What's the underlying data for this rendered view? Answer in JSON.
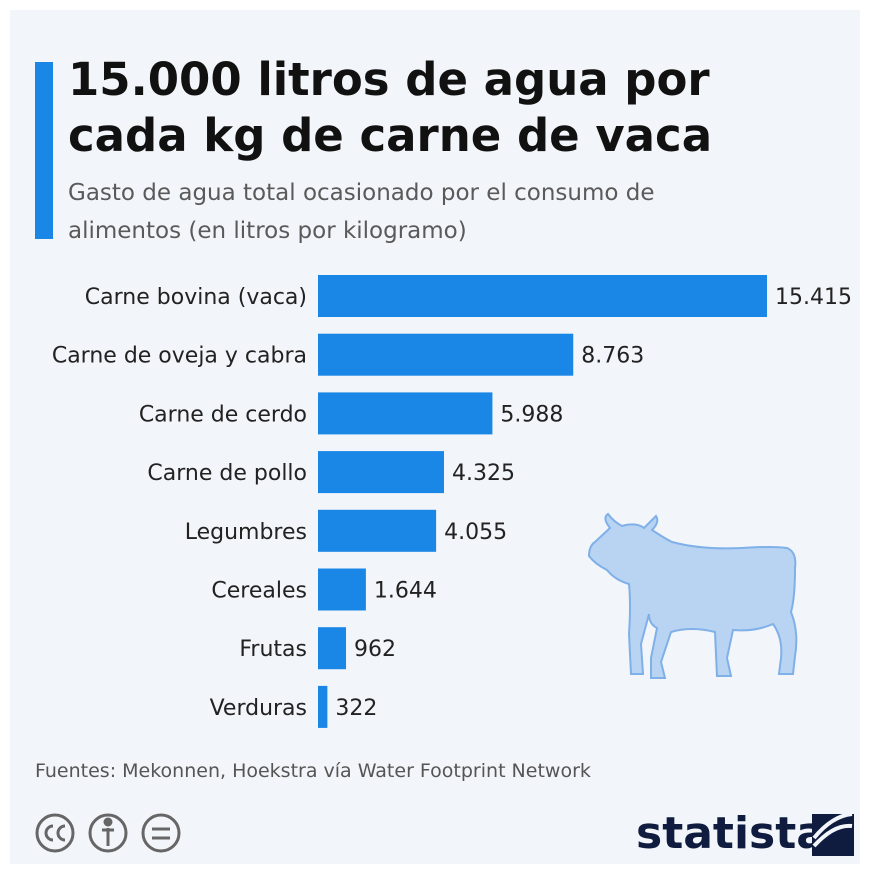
{
  "chart_data": {
    "type": "hbar",
    "title": "15.000 litros de agua por cada kg de carne de vaca",
    "subtitle": "Gasto de agua total ocasionado por el consumo de alimentos (en litros por kilogramo)",
    "categories": [
      "Carne bovina (vaca)",
      "Carne de oveja y cabra",
      "Carne de cerdo",
      "Carne de pollo",
      "Legumbres",
      "Cereales",
      "Frutas",
      "Verduras"
    ],
    "values": [
      15415,
      8763,
      5988,
      4325,
      4055,
      1644,
      962,
      322
    ],
    "value_labels": [
      "15.415",
      "8.763",
      "5.988",
      "4.325",
      "4.055",
      "1.644",
      "962",
      "322"
    ],
    "color": "#1a86e6",
    "source": "Fuentes: Mekonnen, Hoekstra vía Water Footprint Network",
    "brand": "statista"
  }
}
